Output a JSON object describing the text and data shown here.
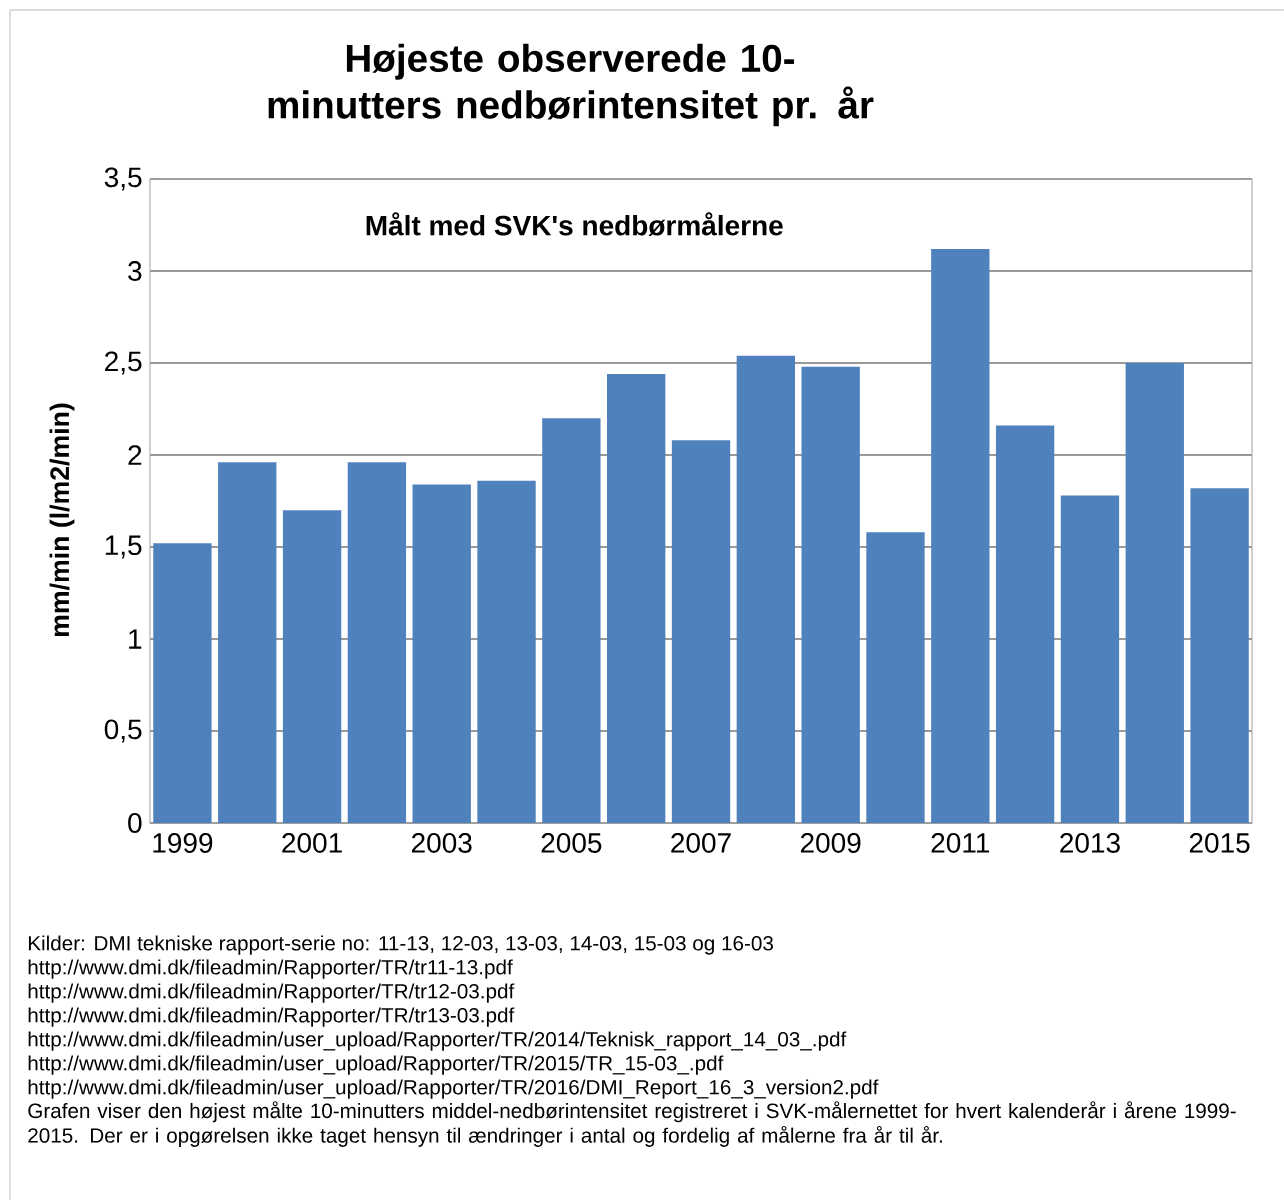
{
  "chart_data": {
    "type": "bar",
    "title": "Højeste observerede 10-minutters nedbørintensitet pr. år",
    "ylabel": "mm/min (l/m2/min)",
    "categories": [
      "1999",
      null,
      "2001",
      null,
      "2003",
      null,
      "2005",
      null,
      "2007",
      null,
      "2009",
      null,
      "2011",
      null,
      "2013",
      null,
      "2015"
    ],
    "values": [
      1.52,
      1.96,
      1.7,
      1.96,
      1.84,
      1.86,
      2.2,
      2.44,
      2.08,
      2.54,
      2.48,
      1.58,
      3.12,
      2.16,
      1.78,
      2.5,
      1.82
    ],
    "color": "#4f81bd",
    "ylim": [
      0,
      3.5
    ],
    "yticks": [
      0,
      {
        "value": 0.5,
        "label": "0,5"
      },
      1,
      {
        "value": 1.5,
        "label": "1,5"
      },
      2,
      {
        "value": 2.5,
        "label": "2,5"
      },
      3,
      {
        "value": 3.5,
        "label": "3,5"
      }
    ],
    "grid": "y",
    "annotations": [
      "Målt med SVK's nedbørmålerne",
      "Kilder: DMI tekniske rapport-serie no: 11-13, 12-03, 13-03, 14-03, 15-03 og 16-03",
      "http://www.dmi.dk/fileadmin/Rapporter/TR/tr11-13.pdf",
      "http://www.dmi.dk/fileadmin/Rapporter/TR/tr12-03.pdf",
      "http://www.dmi.dk/fileadmin/Rapporter/TR/tr13-03.pdf",
      "http://www.dmi.dk/fileadmin/user_upload/Rapporter/TR/2014/Teknisk_rapport_14_03_.pdf",
      "http://www.dmi.dk/fileadmin/user_upload/Rapporter/TR/2015/TR_15-03_.pdf",
      "http://www.dmi.dk/fileadmin/user_upload/Rapporter/TR/2016/DMI_Report_16_3_version2.pdf",
      "Grafen viser den højest målte 10-minutters middel-nedbørintensitet registreret i SVK-målernettet for hvert kalenderår i årene 1999-2015.  Der er i opgørelsen ikke taget hensyn til ændringer i antal og fordelig af målerne fra år til år."
    ]
  }
}
